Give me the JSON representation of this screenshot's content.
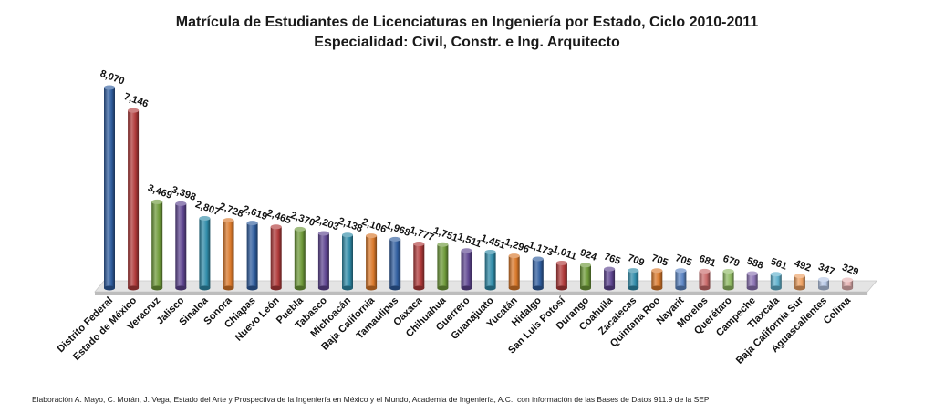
{
  "chart_data": {
    "type": "bar",
    "title": "Matrícula de Estudiantes de Licenciaturas en Ingeniería por Estado, Ciclo 2010-2011",
    "subtitle": "Especialidad: Civil, Constr. e Ing. Arquitecto",
    "categories": [
      "Distrito Federal",
      "Estado de México",
      "Veracruz",
      "Jalisco",
      "Sinaloa",
      "Sonora",
      "Chiapas",
      "Nuevo León",
      "Puebla",
      "Tabasco",
      "Michoacán",
      "Baja California",
      "Tamaulipas",
      "Oaxaca",
      "Chihuahua",
      "Guerrero",
      "Guanajuato",
      "Yucatán",
      "Hidalgo",
      "San Luis Potosí",
      "Durango",
      "Coahuila",
      "Zacatecas",
      "Quintana Roo",
      "Nayarit",
      "Morelos",
      "Querétaro",
      "Campeche",
      "Tlaxcala",
      "Baja California Sur",
      "Aguascalientes",
      "Colima"
    ],
    "values": [
      8070,
      7146,
      3469,
      3398,
      2807,
      2728,
      2619,
      2465,
      2370,
      2203,
      2138,
      2106,
      1968,
      1777,
      1751,
      1511,
      1451,
      1296,
      1173,
      1011,
      924,
      765,
      709,
      705,
      705,
      681,
      679,
      588,
      561,
      492,
      347,
      329
    ],
    "value_labels": [
      "8,070",
      "7,146",
      "3,469",
      "3,398",
      "2,807",
      "2,728",
      "2,619",
      "2,465",
      "2,370",
      "2,203",
      "2,138",
      "2,106",
      "1,968",
      "1,777",
      "1,751",
      "1,511",
      "1,451",
      "1,296",
      "1,173",
      "1,011",
      "924",
      "765",
      "709",
      "705",
      "705",
      "681",
      "679",
      "588",
      "561",
      "492",
      "347",
      "329"
    ],
    "bar_colors": [
      "#2f5d9e",
      "#b03a3a",
      "#6f9a3a",
      "#5e4590",
      "#2f8ba8",
      "#d9782a",
      "#2f5d9e",
      "#b03a3a",
      "#6f9a3a",
      "#5e4590",
      "#2f8ba8",
      "#d9782a",
      "#2f5d9e",
      "#b03a3a",
      "#6f9a3a",
      "#5e4590",
      "#2f8ba8",
      "#d9782a",
      "#2f5d9e",
      "#b03a3a",
      "#6f9a3a",
      "#5e4590",
      "#2f8ba8",
      "#d9782a",
      "#5d86c4",
      "#c96a6a",
      "#8fba63",
      "#8c74b4",
      "#5fb0cc",
      "#eda062",
      "#b7c8e6",
      "#e6b3b3"
    ],
    "ylim": [
      0,
      8500
    ],
    "grid": false,
    "legend": "none"
  },
  "footer": "Elaboración A. Mayo, C. Morán, J. Vega, Estado del Arte y Prospectiva de la Ingeniería en México y el Mundo, Academia de Ingeniería, A.C., con información de las Bases de Datos  911.9 de la SEP"
}
